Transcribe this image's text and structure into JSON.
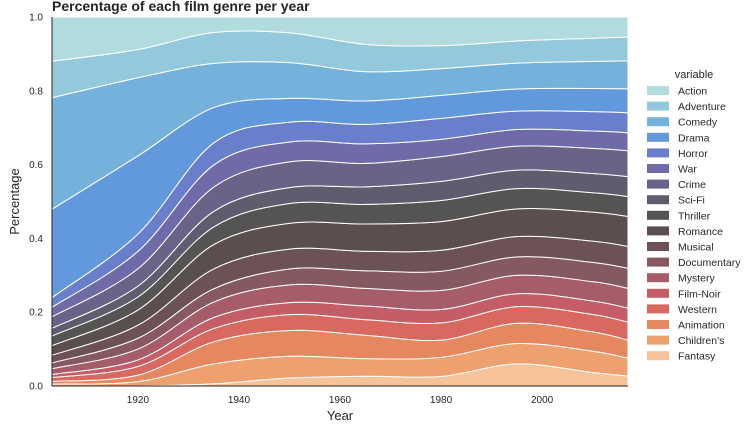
{
  "chart_data": {
    "type": "area",
    "title": "Percentage of each film genre per year",
    "xlabel": "Year",
    "ylabel": "Percentage",
    "xlim": [
      1903,
      2017
    ],
    "ylim": [
      0,
      1
    ],
    "x_ticks": [
      "1920",
      "1940",
      "1960",
      "1980",
      "2000"
    ],
    "x_tick_values": [
      1920,
      1940,
      1960,
      1980,
      2000
    ],
    "y_ticks": [
      "0.0",
      "0.2",
      "0.4",
      "0.6",
      "0.8",
      "1.0"
    ],
    "y_tick_values": [
      0,
      0.2,
      0.4,
      0.6,
      0.8,
      1.0
    ],
    "grid": false,
    "legend_title": "variable",
    "legend_position": "right",
    "x": [
      1903,
      1920,
      1935,
      1950,
      1965,
      1980,
      1995,
      2010,
      2017
    ],
    "stack_bottom_to_top": [
      "Fantasy",
      "Children's",
      "Animation",
      "Western",
      "Film-Noir",
      "Mystery",
      "Documentary",
      "Musical",
      "Romance",
      "Thriller",
      "Sci-Fi",
      "Crime",
      "War",
      "Horror",
      "Drama",
      "Comedy",
      "Adventure",
      "Action"
    ],
    "series": [
      {
        "name": "Action",
        "color": "#b2dbde",
        "values": [
          0.115,
          0.075,
          0.035,
          0.04,
          0.07,
          0.075,
          0.065,
          0.055,
          0.05
        ]
      },
      {
        "name": "Adventure",
        "color": "#94c8dd",
        "values": [
          0.095,
          0.065,
          0.07,
          0.075,
          0.07,
          0.06,
          0.06,
          0.06,
          0.06
        ]
      },
      {
        "name": "Comedy",
        "color": "#74b2dc",
        "values": [
          0.29,
          0.18,
          0.1,
          0.09,
          0.075,
          0.07,
          0.07,
          0.07,
          0.07
        ]
      },
      {
        "name": "Drama",
        "color": "#6199dc",
        "values": [
          0.23,
          0.18,
          0.08,
          0.06,
          0.06,
          0.06,
          0.06,
          0.06,
          0.06
        ]
      },
      {
        "name": "Horror",
        "color": "#6a7fcc",
        "values": [
          0.025,
          0.04,
          0.05,
          0.05,
          0.05,
          0.055,
          0.05,
          0.05,
          0.05
        ]
      },
      {
        "name": "War",
        "color": "#6f6ba8",
        "values": [
          0.025,
          0.04,
          0.05,
          0.05,
          0.05,
          0.045,
          0.045,
          0.045,
          0.045
        ]
      },
      {
        "name": "Crime",
        "color": "#6a6387",
        "values": [
          0.03,
          0.04,
          0.055,
          0.065,
          0.06,
          0.065,
          0.065,
          0.065,
          0.065
        ]
      },
      {
        "name": "Sci-Fi",
        "color": "#605c6e",
        "values": [
          0.02,
          0.025,
          0.035,
          0.04,
          0.045,
          0.05,
          0.05,
          0.05,
          0.05
        ]
      },
      {
        "name": "Thriller",
        "color": "#565353",
        "values": [
          0.025,
          0.03,
          0.04,
          0.05,
          0.05,
          0.055,
          0.055,
          0.05,
          0.05
        ]
      },
      {
        "name": "Romance",
        "color": "#5a4e4f",
        "values": [
          0.025,
          0.035,
          0.055,
          0.065,
          0.07,
          0.075,
          0.075,
          0.075,
          0.075
        ]
      },
      {
        "name": "Musical",
        "color": "#6c5256",
        "values": [
          0.02,
          0.03,
          0.045,
          0.05,
          0.05,
          0.055,
          0.055,
          0.055,
          0.055
        ]
      },
      {
        "name": "Documentary",
        "color": "#865860",
        "values": [
          0.015,
          0.025,
          0.03,
          0.04,
          0.045,
          0.05,
          0.05,
          0.05,
          0.05
        ]
      },
      {
        "name": "Mystery",
        "color": "#a65c69",
        "values": [
          0.015,
          0.025,
          0.035,
          0.045,
          0.045,
          0.05,
          0.05,
          0.05,
          0.05
        ]
      },
      {
        "name": "Film-Noir",
        "color": "#c55d66",
        "values": [
          0.008,
          0.015,
          0.025,
          0.03,
          0.035,
          0.035,
          0.035,
          0.035,
          0.035
        ]
      },
      {
        "name": "Western",
        "color": "#d9685f",
        "values": [
          0.01,
          0.02,
          0.03,
          0.04,
          0.04,
          0.045,
          0.045,
          0.045,
          0.045
        ]
      },
      {
        "name": "Animation",
        "color": "#e58860",
        "values": [
          0.007,
          0.015,
          0.05,
          0.065,
          0.06,
          0.045,
          0.055,
          0.05,
          0.045
        ]
      },
      {
        "name": "Children's",
        "color": "#eea16f",
        "values": [
          0.005,
          0.01,
          0.045,
          0.055,
          0.045,
          0.05,
          0.055,
          0.055,
          0.045
        ]
      },
      {
        "name": "Fantasy",
        "color": "#f5c29a",
        "values": [
          0.0,
          0.0,
          0.005,
          0.02,
          0.025,
          0.025,
          0.06,
          0.035,
          0.025
        ]
      }
    ]
  }
}
